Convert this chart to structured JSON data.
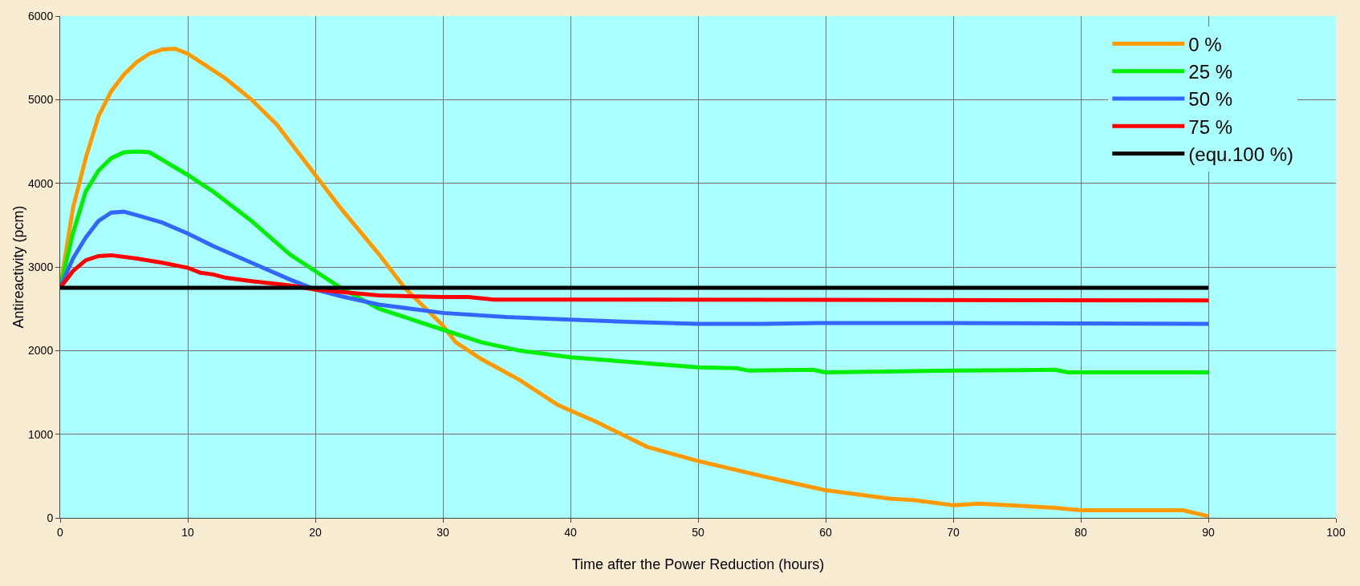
{
  "chart_data": {
    "type": "line",
    "xlabel": "Time after the Power Reduction (hours)",
    "ylabel": "Antireactivity (pcm)",
    "xlim": [
      0,
      100
    ],
    "xticks": [
      0,
      10,
      20,
      30,
      40,
      50,
      60,
      70,
      80,
      90,
      100
    ],
    "ylim": [
      0,
      6000
    ],
    "yticks": [
      0,
      1000,
      2000,
      3000,
      4000,
      5000,
      6000
    ],
    "grid": true,
    "legend": "top right",
    "marker": "none",
    "line_style": "solid",
    "series": [
      {
        "name": "0 %",
        "color": "#ff9900",
        "x": [
          0,
          1,
          2,
          3,
          4,
          5,
          6,
          7,
          8,
          9,
          10,
          11,
          13,
          15,
          17,
          20,
          22,
          25,
          27,
          30,
          31,
          33,
          36,
          39,
          42,
          46,
          50,
          55,
          60,
          65,
          67,
          70,
          72,
          78,
          80,
          88,
          90
        ],
        "values": [
          2750,
          3700,
          4300,
          4800,
          5100,
          5300,
          5450,
          5550,
          5600,
          5610,
          5550,
          5450,
          5250,
          5000,
          4700,
          4100,
          3700,
          3150,
          2750,
          2300,
          2100,
          1900,
          1650,
          1350,
          1150,
          850,
          680,
          500,
          330,
          230,
          210,
          150,
          170,
          120,
          90,
          90,
          20
        ]
      },
      {
        "name": "25 %",
        "color": "#00ee00",
        "x": [
          0,
          1,
          2,
          3,
          4,
          5,
          6,
          7,
          8,
          10,
          12,
          15,
          18,
          20,
          22,
          25,
          28,
          30,
          33,
          36,
          40,
          45,
          50,
          53,
          54,
          59,
          60,
          70,
          78,
          79,
          90
        ],
        "values": [
          2750,
          3400,
          3900,
          4150,
          4300,
          4370,
          4380,
          4370,
          4280,
          4100,
          3900,
          3550,
          3150,
          2950,
          2750,
          2500,
          2350,
          2250,
          2100,
          2000,
          1920,
          1860,
          1800,
          1790,
          1760,
          1770,
          1740,
          1760,
          1770,
          1740,
          1740
        ]
      },
      {
        "name": "50 %",
        "color": "#3366ff",
        "x": [
          0,
          1,
          2,
          3,
          4,
          5,
          6,
          8,
          10,
          12,
          15,
          18,
          20,
          22,
          25,
          30,
          35,
          40,
          45,
          50,
          55,
          60,
          70,
          90
        ],
        "values": [
          2750,
          3100,
          3350,
          3550,
          3650,
          3660,
          3620,
          3530,
          3400,
          3250,
          3050,
          2850,
          2730,
          2650,
          2550,
          2450,
          2400,
          2370,
          2340,
          2320,
          2320,
          2330,
          2330,
          2320
        ]
      },
      {
        "name": "75 %",
        "color": "#ff0000",
        "x": [
          0,
          1,
          2,
          3,
          4,
          6,
          8,
          10,
          11,
          12,
          13,
          15,
          18,
          20,
          25,
          30,
          32,
          34,
          40,
          90
        ],
        "values": [
          2750,
          2950,
          3080,
          3130,
          3140,
          3100,
          3050,
          2990,
          2930,
          2910,
          2870,
          2830,
          2780,
          2730,
          2660,
          2640,
          2640,
          2610,
          2610,
          2600
        ]
      },
      {
        "name": "(equ.100 %)",
        "color": "#000000",
        "x": [
          0,
          90
        ],
        "values": [
          2750,
          2750
        ]
      }
    ]
  }
}
